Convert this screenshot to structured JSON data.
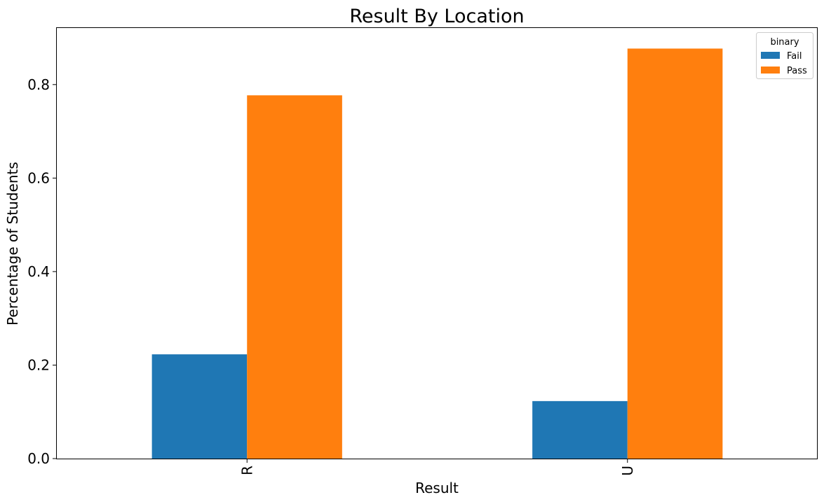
{
  "chart_data": {
    "type": "bar",
    "title": "Result By Location",
    "xlabel": "Result",
    "ylabel": "Percentage of Students",
    "categories": [
      "R",
      "U"
    ],
    "series": [
      {
        "name": "Fail",
        "color": "#1f77b4",
        "values": [
          0.223,
          0.123
        ]
      },
      {
        "name": "Pass",
        "color": "#ff7f0e",
        "values": [
          0.777,
          0.877
        ]
      }
    ],
    "ylim": [
      0,
      0.921
    ],
    "yticks": [
      0.0,
      0.2,
      0.4,
      0.6,
      0.8
    ],
    "ytick_labels": [
      "0.0",
      "0.2",
      "0.4",
      "0.6",
      "0.8"
    ],
    "grid": false,
    "legend": {
      "title": "binary",
      "placement": "top-right"
    },
    "xtick_rotation": "vertical"
  }
}
